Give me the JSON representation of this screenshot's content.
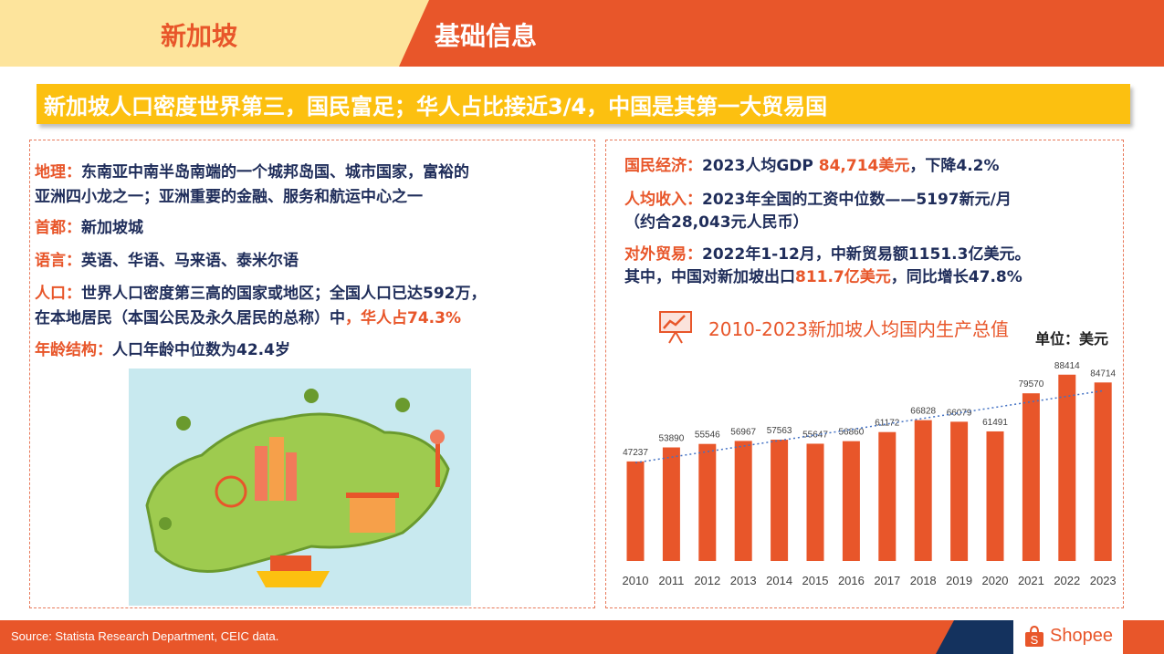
{
  "header": {
    "country": "新加坡",
    "title": "基础信息"
  },
  "banner": "新加坡人口密度世界第三，国民富足；华人占比接近3/4，中国是其第一大贸易国",
  "left": {
    "geo_label": "地理：",
    "geo_line1": "东南亚中南半岛南端的一个城邦岛国、城市国家，富裕的",
    "geo_line2": "亚洲四小龙之一；亚洲重要的金融、服务和航运中心之一",
    "capital_label": "首都：",
    "capital": "新加坡城",
    "lang_label": "语言：",
    "lang": "英语、华语、马来语、泰米尔语",
    "pop_label": "人口：",
    "pop_line1": "世界人口密度第三高的国家或地区；全国人口已达592万，",
    "pop_line2": "在本地居民（本国公民及永久居民的总称）中",
    "pop_hl": "，华人占74.3%",
    "age_label": "年龄结构：",
    "age": "人口年龄中位数为42.4岁"
  },
  "right": {
    "econ_label": "国民经济：",
    "econ_a": "2023人均GDP ",
    "econ_hl": "84,714美元",
    "econ_b": "，下降4.2%",
    "income_label": "人均收入：",
    "income_line1": "2023年全国的工资中位数——5197新元/月",
    "income_line2": "（约合28,043元人民币）",
    "trade_label": "对外贸易：",
    "trade_line1": "2022年1-12月，中新贸易额1151.3亿美元。",
    "trade_a": "其中，中国对新加坡出口",
    "trade_hl": "811.7亿美元",
    "trade_b": "，同比增长47.8%"
  },
  "chart_data": {
    "type": "bar",
    "title": "2010-2023新加坡人均国内生产总值",
    "unit": "单位：美元",
    "categories": [
      "2010",
      "2011",
      "2012",
      "2013",
      "2014",
      "2015",
      "2016",
      "2017",
      "2018",
      "2019",
      "2020",
      "2021",
      "2022",
      "2023"
    ],
    "values": [
      47237,
      53890,
      55546,
      56967,
      57563,
      55647,
      56860,
      61172,
      66828,
      66079,
      61491,
      79570,
      88414,
      84714
    ],
    "ylim": [
      0,
      100000
    ],
    "trendline": "linear",
    "bar_color": "#e8562a",
    "trend_color": "#4472c4"
  },
  "footer": {
    "source": "Source: Statista Research Department, CEIC data.",
    "brand": "Shopee"
  }
}
